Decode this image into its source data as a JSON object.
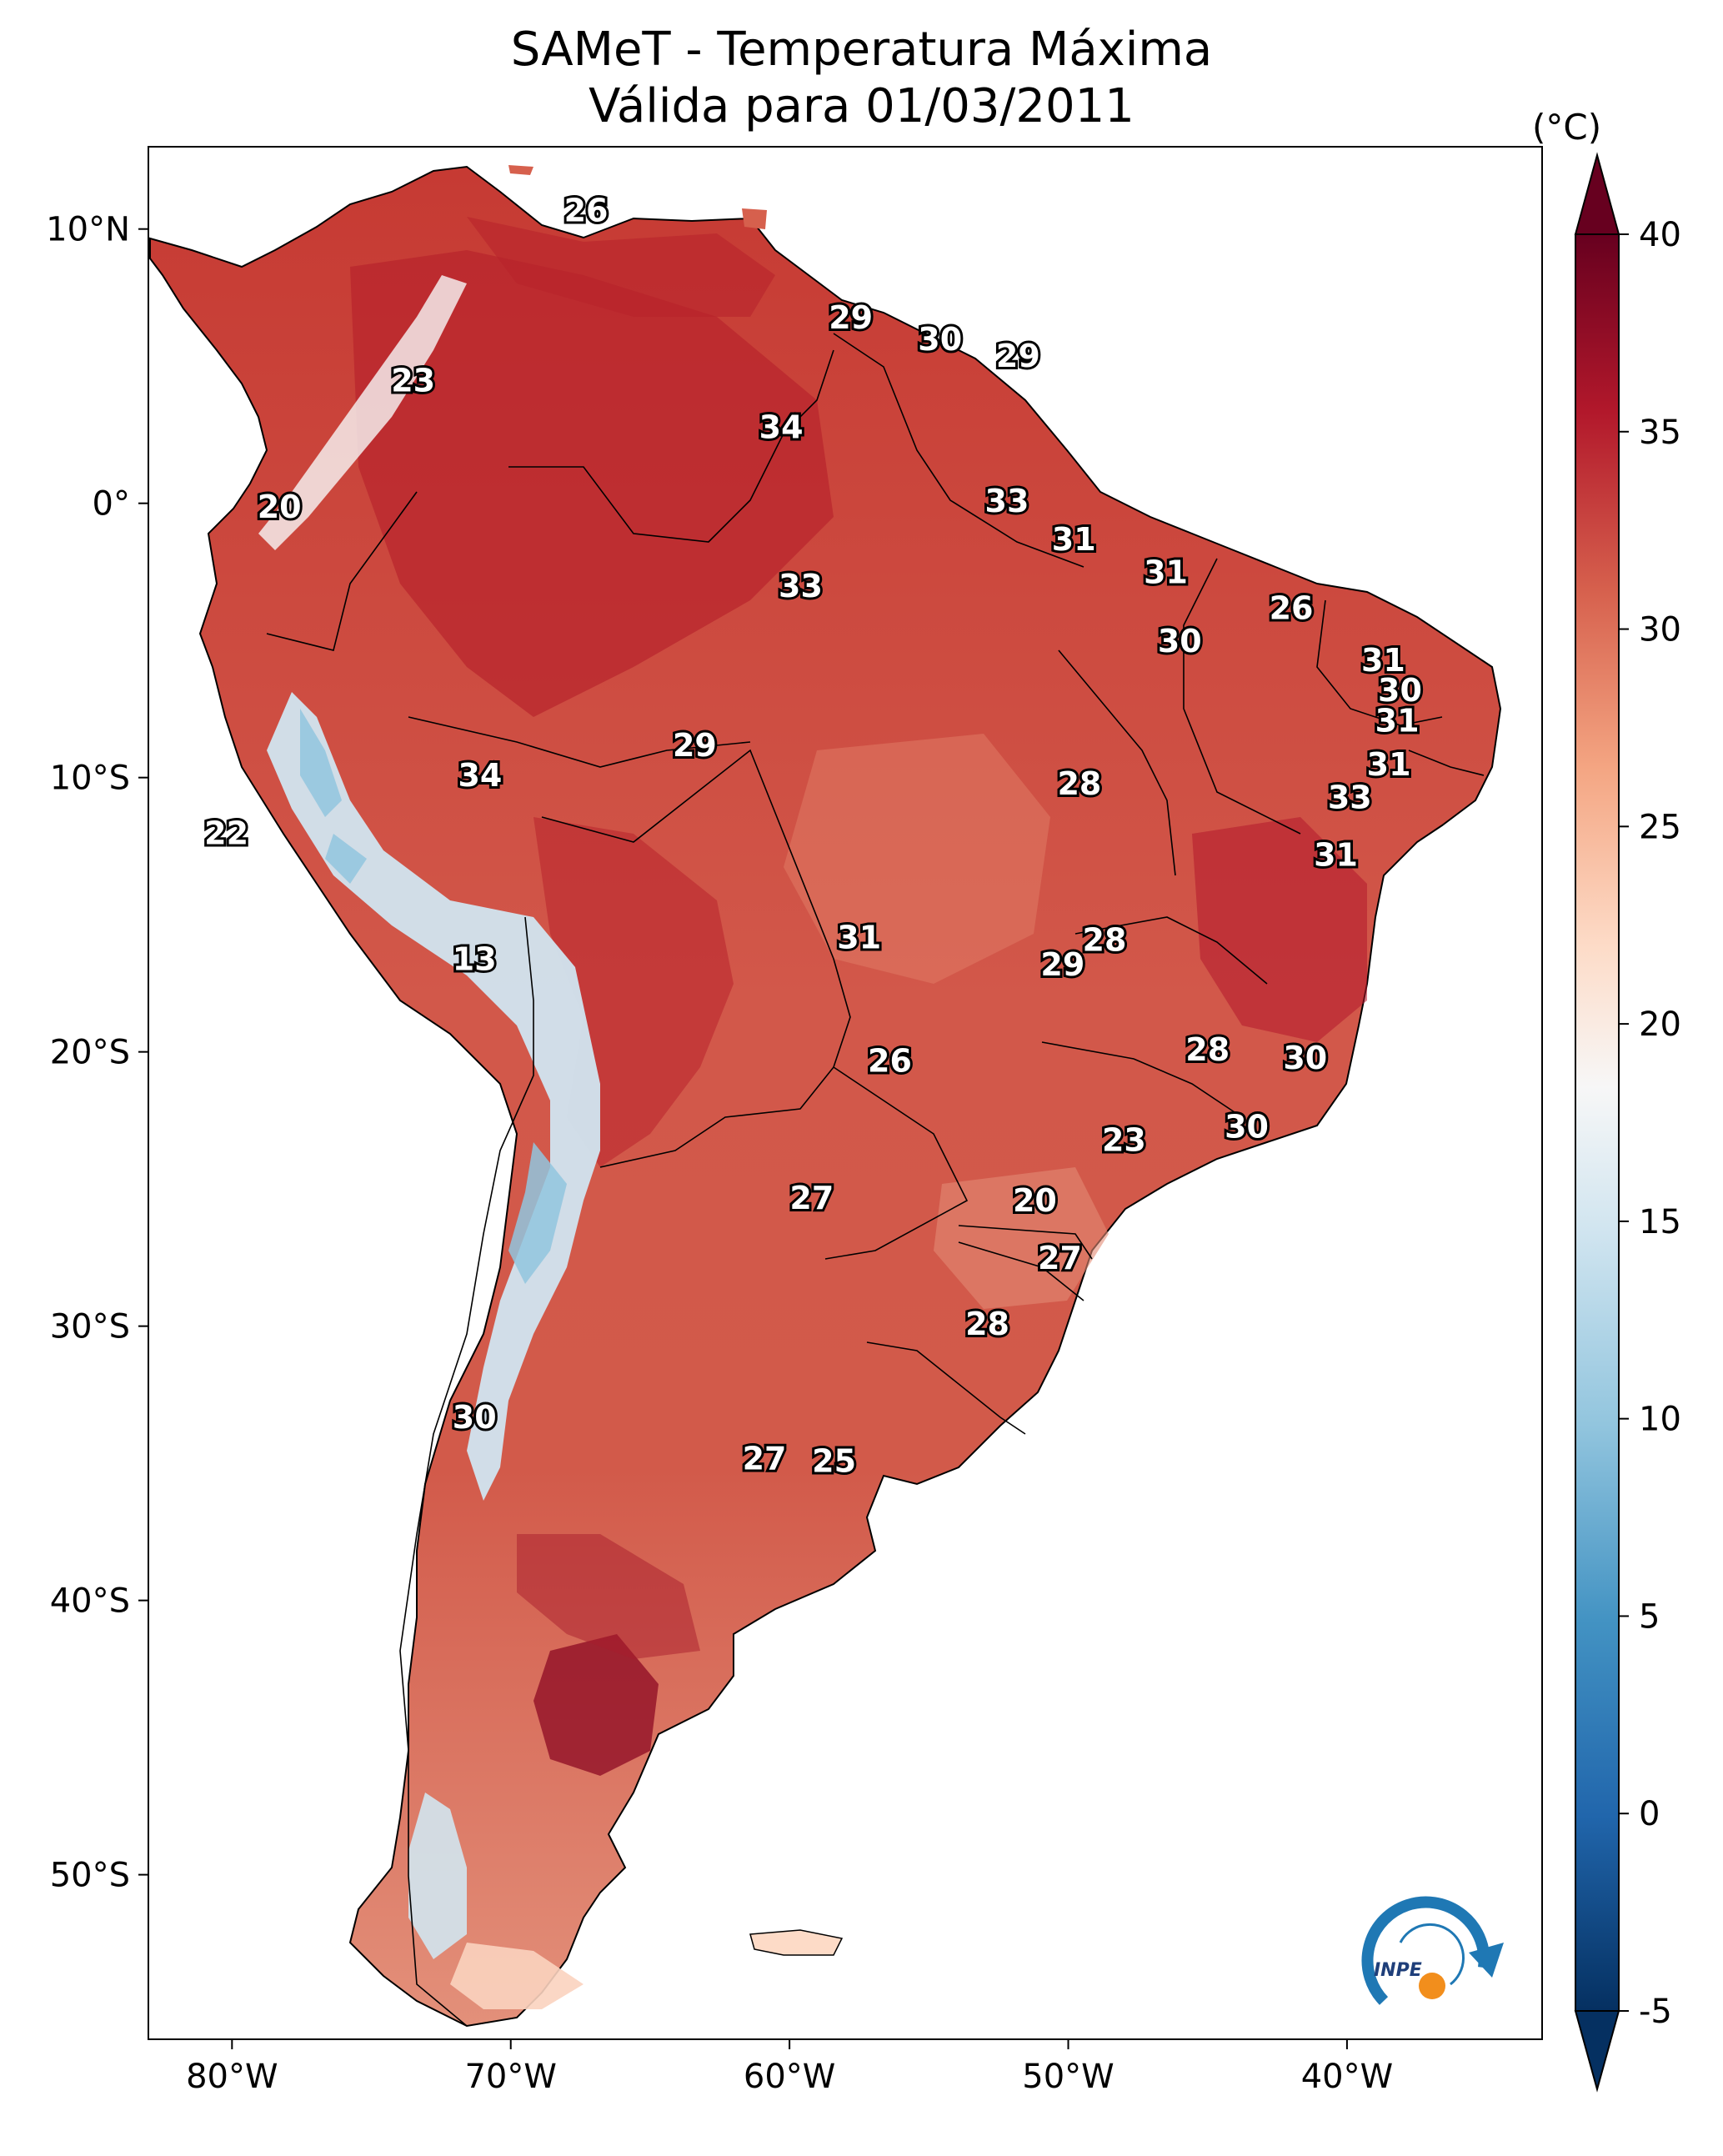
{
  "title": {
    "line1": "SAMeT - Temperatura Máxima",
    "line2": "Válida para 01/03/2011"
  },
  "axes": {
    "lon_ticks": [
      "80°W",
      "70°W",
      "60°W",
      "50°W",
      "40°W"
    ],
    "lat_ticks": [
      "10°N",
      "0°",
      "10°S",
      "20°S",
      "30°S",
      "40°S",
      "50°S"
    ],
    "extent": {
      "lon": [
        -83,
        -33
      ],
      "lat": [
        -56,
        13
      ]
    }
  },
  "colorbar": {
    "unit": "(°C)",
    "ticks": [
      "40",
      "35",
      "30",
      "25",
      "20",
      "15",
      "10",
      "5",
      "0",
      "-5"
    ],
    "range": [
      -5,
      40
    ],
    "colors": {
      "max": "#67001f",
      "hot": "#b2182b",
      "warm": "#d6604d",
      "mild": "#f4a582",
      "cool": "#fddbc7",
      "neutral": "#f7f7f7",
      "cold": "#d1e5f0",
      "colder": "#92c5de",
      "coldest": "#4393c3",
      "deep": "#2166ac",
      "min": "#053061"
    }
  },
  "contour_labels": [
    {
      "text": "26",
      "lon": -67.3,
      "lat": 10.6
    },
    {
      "text": "23",
      "lon": -73.5,
      "lat": 4.4
    },
    {
      "text": "20",
      "lon": -78.3,
      "lat": -0.2
    },
    {
      "text": "29",
      "lon": -57.8,
      "lat": 6.7
    },
    {
      "text": "30",
      "lon": -54.6,
      "lat": 5.9
    },
    {
      "text": "29",
      "lon": -51.8,
      "lat": 5.3
    },
    {
      "text": "34",
      "lon": -60.3,
      "lat": 2.7
    },
    {
      "text": "33",
      "lon": -52.2,
      "lat": 0.0
    },
    {
      "text": "31",
      "lon": -49.8,
      "lat": -1.4
    },
    {
      "text": "31",
      "lon": -46.5,
      "lat": -2.6
    },
    {
      "text": "33",
      "lon": -59.6,
      "lat": -3.1
    },
    {
      "text": "26",
      "lon": -42.0,
      "lat": -3.9
    },
    {
      "text": "30",
      "lon": -46.0,
      "lat": -5.1
    },
    {
      "text": "31",
      "lon": -38.7,
      "lat": -5.8
    },
    {
      "text": "30",
      "lon": -38.1,
      "lat": -6.9
    },
    {
      "text": "31",
      "lon": -38.2,
      "lat": -8.0
    },
    {
      "text": "29",
      "lon": -63.4,
      "lat": -8.9
    },
    {
      "text": "34",
      "lon": -71.1,
      "lat": -10.0
    },
    {
      "text": "31",
      "lon": -38.5,
      "lat": -9.6
    },
    {
      "text": "28",
      "lon": -49.6,
      "lat": -10.3
    },
    {
      "text": "33",
      "lon": -39.9,
      "lat": -10.8
    },
    {
      "text": "22",
      "lon": -80.2,
      "lat": -12.1
    },
    {
      "text": "31",
      "lon": -40.4,
      "lat": -12.9
    },
    {
      "text": "28",
      "lon": -48.7,
      "lat": -16.0
    },
    {
      "text": "31",
      "lon": -57.5,
      "lat": -15.9
    },
    {
      "text": "29",
      "lon": -50.2,
      "lat": -16.9
    },
    {
      "text": "13",
      "lon": -71.3,
      "lat": -16.7
    },
    {
      "text": "28",
      "lon": -45.0,
      "lat": -20.0
    },
    {
      "text": "30",
      "lon": -41.5,
      "lat": -20.3
    },
    {
      "text": "26",
      "lon": -56.4,
      "lat": -20.4
    },
    {
      "text": "30",
      "lon": -43.6,
      "lat": -22.8
    },
    {
      "text": "23",
      "lon": -48.0,
      "lat": -23.3
    },
    {
      "text": "27",
      "lon": -59.2,
      "lat": -25.4
    },
    {
      "text": "20",
      "lon": -51.2,
      "lat": -25.5
    },
    {
      "text": "27",
      "lon": -50.3,
      "lat": -27.6
    },
    {
      "text": "28",
      "lon": -52.9,
      "lat": -30.0
    },
    {
      "text": "30",
      "lon": -71.3,
      "lat": -33.4
    },
    {
      "text": "27",
      "lon": -60.9,
      "lat": -34.9
    },
    {
      "text": "25",
      "lon": -58.4,
      "lat": -35.0
    }
  ],
  "logo": {
    "text": "INPE",
    "colors": {
      "blue": "#1f78b4",
      "orange": "#f28e1c"
    }
  }
}
